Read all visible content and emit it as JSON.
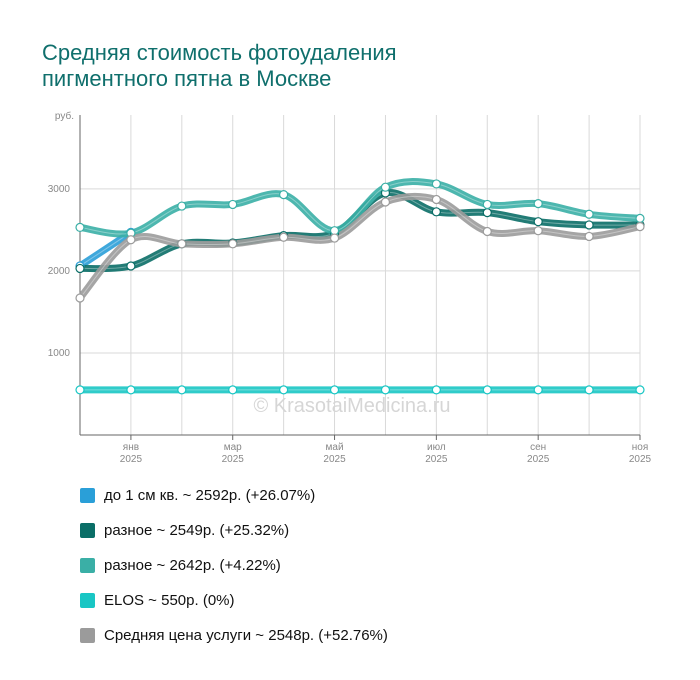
{
  "title_lines": [
    "Средняя стоимость фотоудаления",
    "пигментного пятна в Москве"
  ],
  "watermark": "© KrasotaiMedicina.ru",
  "chart_data": {
    "type": "line",
    "title": "Средняя стоимость фотоудаления пигментного пятна в Москве",
    "ylabel": "руб.",
    "ylim": [
      0,
      3900
    ],
    "yticks": [
      1000,
      2000,
      3000
    ],
    "x": [
      0,
      1,
      2,
      3,
      4,
      5,
      6,
      7,
      8,
      9,
      10,
      11
    ],
    "x_ticks": [
      {
        "pos": 1,
        "month": "янв",
        "year": "2025"
      },
      {
        "pos": 3,
        "month": "мар",
        "year": "2025"
      },
      {
        "pos": 5,
        "month": "май",
        "year": "2025"
      },
      {
        "pos": 7,
        "month": "июл",
        "year": "2025"
      },
      {
        "pos": 9,
        "month": "сен",
        "year": "2025"
      },
      {
        "pos": 11,
        "month": "ноя",
        "year": "2025"
      }
    ],
    "series": [
      {
        "name": "до 1 см кв.",
        "legend": "до 1 см кв. ~ 2592р. (+26.07%)",
        "color": "#2a9fd8",
        "values": [
          2060,
          2470,
          null,
          null,
          null,
          null,
          null,
          null,
          null,
          null,
          null,
          null
        ]
      },
      {
        "name": "разное",
        "legend": "разное ~ 2549р. (+25.32%)",
        "color": "#0a6e67",
        "values": [
          2030,
          2060,
          2330,
          2340,
          2430,
          2460,
          2950,
          2720,
          2710,
          2600,
          2560,
          2560
        ]
      },
      {
        "name": "разное",
        "legend": "разное ~ 2642р. (+4.22%)",
        "color": "#3aafa6",
        "values": [
          2530,
          2460,
          2790,
          2810,
          2930,
          2490,
          3020,
          3060,
          2810,
          2820,
          2690,
          2640
        ]
      },
      {
        "name": "ELOS",
        "legend": "ELOS ~ 550р. (0%)",
        "color": "#19c6c4",
        "values": [
          550,
          550,
          550,
          550,
          550,
          550,
          550,
          550,
          550,
          550,
          550,
          550
        ]
      },
      {
        "name": "Средняя цена услуги",
        "legend": "Средняя цена услуги ~ 2548р. (+52.76%)",
        "color": "#9b9b9b",
        "values": [
          1670,
          2380,
          2330,
          2330,
          2410,
          2400,
          2840,
          2870,
          2480,
          2490,
          2420,
          2540
        ]
      }
    ]
  }
}
